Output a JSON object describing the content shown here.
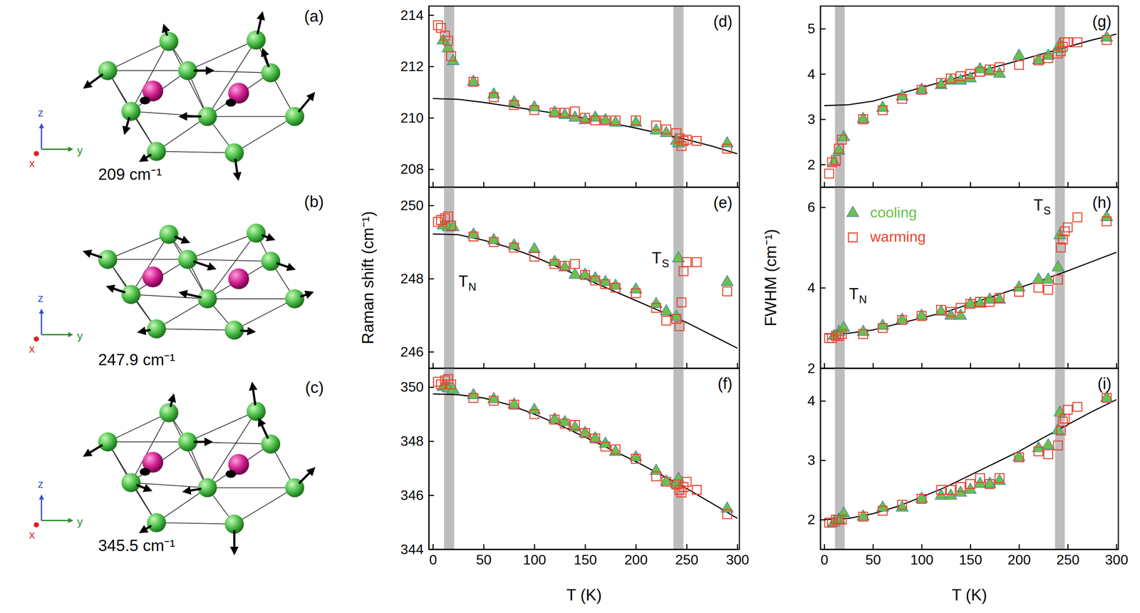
{
  "chart_data": [
    {
      "type": "scatter",
      "panel_label": "(d)",
      "xlim": [
        -4,
        302
      ],
      "xticks": [
        0,
        50,
        100,
        150,
        200,
        250,
        300
      ],
      "ylim": [
        207.3,
        214.35
      ],
      "yticks": [
        208,
        210,
        212,
        214
      ],
      "tick_labels": "y",
      "bands": [
        {
          "x0": 11,
          "x1": 21
        },
        {
          "x0": 237,
          "x1": 247
        }
      ],
      "series": [
        {
          "type": "line",
          "color": "#000000",
          "line_style": "solid",
          "x": [
            0,
            25,
            50,
            75,
            100,
            125,
            150,
            175,
            200,
            225,
            250,
            275,
            300
          ],
          "values": [
            210.75,
            210.72,
            210.6,
            210.45,
            210.3,
            210.15,
            209.98,
            209.8,
            209.6,
            209.38,
            209.15,
            208.9,
            208.6
          ]
        },
        {
          "type": "scatter",
          "color": "#6cc04a",
          "marker": "triangle",
          "x": [
            10,
            15,
            20,
            40,
            60,
            80,
            100,
            120,
            130,
            140,
            150,
            160,
            170,
            180,
            200,
            220,
            230,
            240,
            242,
            290
          ],
          "values": [
            213.0,
            212.7,
            212.2,
            211.4,
            210.9,
            210.6,
            210.4,
            210.2,
            210.1,
            210.0,
            209.9,
            210.0,
            209.9,
            209.8,
            209.8,
            209.5,
            209.4,
            209.1,
            209.0,
            209.0
          ]
        },
        {
          "type": "scatter",
          "color": "#e8452c",
          "marker": "square",
          "x": [
            5,
            8,
            12,
            15,
            18,
            40,
            60,
            80,
            100,
            120,
            130,
            140,
            150,
            160,
            170,
            180,
            200,
            220,
            230,
            240,
            243,
            245,
            247,
            250,
            260,
            290
          ],
          "values": [
            213.6,
            213.5,
            213.2,
            213.0,
            212.4,
            211.4,
            210.8,
            210.5,
            210.3,
            210.2,
            210.2,
            210.25,
            210.0,
            209.9,
            209.9,
            209.9,
            209.9,
            209.7,
            209.55,
            209.4,
            209.2,
            208.9,
            209.1,
            209.15,
            209.1,
            208.8
          ]
        }
      ]
    },
    {
      "type": "scatter",
      "panel_label": "(e)",
      "y_label": "Raman shift (cm⁻¹)",
      "xlim": [
        -4,
        302
      ],
      "xticks": [
        0,
        50,
        100,
        150,
        200,
        250,
        300
      ],
      "ylim": [
        245.55,
        250.5
      ],
      "yticks": [
        246,
        248,
        250
      ],
      "tick_labels": "y",
      "bands": [
        {
          "x0": 11,
          "x1": 21,
          "label": {
            "text": "T",
            "sub": "N"
          }
        },
        {
          "x0": 237,
          "x1": 247,
          "label": {
            "text": "T",
            "sub": "S"
          }
        }
      ],
      "series": [
        {
          "type": "line",
          "color": "#000000",
          "line_style": "solid",
          "x": [
            0,
            25,
            50,
            75,
            100,
            125,
            150,
            175,
            200,
            225,
            250,
            275,
            300
          ],
          "values": [
            249.22,
            249.2,
            249.05,
            248.85,
            248.6,
            248.3,
            248.0,
            247.7,
            247.4,
            247.1,
            246.8,
            246.45,
            246.1
          ]
        },
        {
          "type": "scatter",
          "color": "#6cc04a",
          "marker": "triangle",
          "x": [
            10,
            15,
            20,
            40,
            60,
            80,
            100,
            120,
            130,
            140,
            150,
            160,
            170,
            180,
            200,
            220,
            230,
            240,
            242,
            290
          ],
          "values": [
            249.45,
            249.4,
            249.4,
            249.2,
            249.05,
            248.9,
            248.8,
            248.45,
            248.3,
            248.1,
            248.1,
            248.0,
            247.9,
            247.8,
            247.7,
            247.3,
            247.1,
            246.95,
            248.55,
            247.9
          ]
        },
        {
          "type": "scatter",
          "color": "#e8452c",
          "marker": "square",
          "x": [
            5,
            8,
            12,
            15,
            18,
            40,
            60,
            80,
            100,
            120,
            130,
            140,
            150,
            160,
            170,
            180,
            200,
            220,
            230,
            240,
            243,
            245,
            247,
            250,
            260,
            290
          ],
          "values": [
            249.55,
            249.6,
            249.65,
            249.7,
            249.45,
            249.15,
            249.0,
            248.85,
            248.6,
            248.4,
            248.35,
            248.4,
            248.1,
            247.95,
            247.85,
            247.75,
            247.6,
            247.2,
            246.85,
            246.9,
            246.7,
            247.35,
            248.2,
            248.45,
            248.45,
            247.65
          ]
        }
      ]
    },
    {
      "type": "scatter",
      "panel_label": "(f)",
      "x_label": "T (K)",
      "xlim": [
        -4,
        302
      ],
      "xticks": [
        0,
        50,
        100,
        150,
        200,
        250,
        300
      ],
      "ylim": [
        344,
        350.7
      ],
      "yticks": [
        344,
        346,
        348,
        350
      ],
      "bands": [
        {
          "x0": 11,
          "x1": 21
        },
        {
          "x0": 237,
          "x1": 247
        }
      ],
      "series": [
        {
          "type": "line",
          "color": "#000000",
          "line_style": "solid",
          "x": [
            0,
            25,
            50,
            75,
            100,
            125,
            150,
            175,
            200,
            225,
            250,
            275,
            300
          ],
          "values": [
            349.75,
            349.72,
            349.6,
            349.35,
            349.0,
            348.6,
            348.15,
            347.7,
            347.25,
            346.75,
            346.25,
            345.7,
            345.15
          ]
        },
        {
          "type": "scatter",
          "color": "#6cc04a",
          "marker": "triangle",
          "x": [
            10,
            15,
            20,
            40,
            60,
            80,
            100,
            120,
            130,
            140,
            150,
            160,
            170,
            180,
            200,
            220,
            230,
            240,
            242,
            290
          ],
          "values": [
            350.0,
            349.95,
            349.9,
            349.7,
            349.55,
            349.35,
            349.15,
            348.8,
            348.7,
            348.5,
            348.3,
            348.1,
            347.9,
            347.6,
            347.4,
            346.9,
            346.5,
            346.4,
            346.6,
            345.5
          ]
        },
        {
          "type": "scatter",
          "color": "#e8452c",
          "marker": "square",
          "x": [
            5,
            8,
            12,
            15,
            18,
            40,
            60,
            80,
            100,
            120,
            130,
            140,
            150,
            160,
            170,
            180,
            200,
            220,
            230,
            240,
            243,
            245,
            247,
            250,
            260,
            290
          ],
          "values": [
            350.2,
            350.1,
            350.25,
            350.3,
            350.1,
            349.6,
            349.5,
            349.35,
            349.0,
            348.8,
            348.65,
            348.6,
            348.3,
            348.1,
            347.8,
            347.7,
            347.35,
            346.7,
            346.5,
            346.4,
            346.2,
            346.1,
            346.3,
            346.5,
            346.2,
            345.3
          ]
        }
      ]
    },
    {
      "type": "scatter",
      "panel_label": "(g)",
      "xlim": [
        -4,
        302
      ],
      "xticks": [
        0,
        50,
        100,
        150,
        200,
        250,
        300
      ],
      "ylim": [
        1.5,
        5.5
      ],
      "yticks": [
        2,
        3,
        4,
        5
      ],
      "tick_labels": "y",
      "bands": [
        {
          "x0": 11,
          "x1": 21
        },
        {
          "x0": 237,
          "x1": 247
        }
      ],
      "series": [
        {
          "type": "line",
          "color": "#000000",
          "line_style": "solid",
          "x": [
            0,
            25,
            50,
            75,
            100,
            125,
            150,
            175,
            200,
            225,
            250,
            275,
            300
          ],
          "values": [
            3.3,
            3.32,
            3.4,
            3.55,
            3.7,
            3.85,
            4.0,
            4.15,
            4.3,
            4.45,
            4.6,
            4.75,
            4.88
          ]
        },
        {
          "type": "scatter",
          "color": "#6cc04a",
          "marker": "triangle",
          "x": [
            10,
            15,
            20,
            40,
            60,
            80,
            100,
            120,
            130,
            140,
            150,
            160,
            170,
            180,
            200,
            220,
            230,
            240,
            242,
            290
          ],
          "values": [
            2.05,
            2.3,
            2.6,
            3.0,
            3.25,
            3.5,
            3.65,
            3.75,
            3.85,
            3.85,
            3.9,
            4.1,
            4.05,
            4.0,
            4.4,
            4.3,
            4.4,
            4.55,
            4.65,
            4.8
          ]
        },
        {
          "type": "scatter",
          "color": "#e8452c",
          "marker": "square",
          "x": [
            5,
            8,
            12,
            15,
            18,
            40,
            60,
            80,
            100,
            120,
            130,
            140,
            150,
            160,
            170,
            180,
            200,
            220,
            230,
            240,
            243,
            245,
            247,
            250,
            260,
            290
          ],
          "values": [
            1.8,
            2.05,
            2.1,
            2.35,
            2.55,
            3.0,
            3.2,
            3.45,
            3.65,
            3.8,
            3.9,
            3.95,
            4.0,
            4.05,
            4.1,
            4.15,
            4.2,
            4.3,
            4.35,
            4.45,
            4.5,
            4.6,
            4.7,
            4.7,
            4.7,
            4.75
          ]
        }
      ]
    },
    {
      "type": "scatter",
      "panel_label": "(h)",
      "y_label": "FWHM (cm⁻¹)",
      "xlim": [
        -4,
        302
      ],
      "xticks": [
        0,
        50,
        100,
        150,
        200,
        250,
        300
      ],
      "ylim": [
        2,
        6.5
      ],
      "yticks": [
        2,
        4,
        6
      ],
      "tick_labels": "y",
      "legend": "top-left",
      "bands": [
        {
          "x0": 11,
          "x1": 21,
          "label": {
            "text": "T",
            "sub": "N"
          }
        },
        {
          "x0": 237,
          "x1": 247,
          "label": {
            "text": "T",
            "sub": "S"
          }
        }
      ],
      "series": [
        {
          "type": "line",
          "color": "#000000",
          "line_style": "solid",
          "x": [
            0,
            25,
            50,
            75,
            100,
            125,
            150,
            175,
            200,
            225,
            250,
            275,
            300
          ],
          "values": [
            2.85,
            2.87,
            2.95,
            3.1,
            3.25,
            3.4,
            3.6,
            3.8,
            4.0,
            4.2,
            4.42,
            4.65,
            4.88
          ]
        },
        {
          "type": "scatter",
          "name": "cooling",
          "color": "#6cc04a",
          "marker": "triangle",
          "x": [
            10,
            15,
            20,
            40,
            60,
            80,
            100,
            120,
            130,
            140,
            150,
            160,
            170,
            180,
            200,
            220,
            230,
            240,
            242,
            290
          ],
          "values": [
            2.8,
            2.9,
            3.0,
            2.9,
            3.05,
            3.2,
            3.3,
            3.4,
            3.3,
            3.3,
            3.6,
            3.6,
            3.7,
            3.7,
            4.0,
            4.2,
            4.2,
            4.5,
            5.3,
            5.75
          ]
        },
        {
          "type": "scatter",
          "name": "warming",
          "color": "#e8452c",
          "marker": "square",
          "x": [
            5,
            8,
            12,
            15,
            18,
            40,
            60,
            80,
            100,
            120,
            130,
            140,
            150,
            160,
            170,
            180,
            200,
            220,
            230,
            240,
            243,
            245,
            247,
            250,
            260,
            290
          ],
          "values": [
            2.75,
            2.75,
            2.8,
            2.8,
            2.85,
            2.85,
            3.0,
            3.2,
            3.3,
            3.45,
            3.4,
            3.5,
            3.6,
            3.65,
            3.65,
            3.75,
            3.9,
            4.0,
            3.95,
            4.2,
            5.0,
            5.2,
            5.4,
            5.5,
            5.75,
            5.65
          ]
        }
      ]
    },
    {
      "type": "scatter",
      "panel_label": "(i)",
      "x_label": "T (K)",
      "xlim": [
        -4,
        302
      ],
      "xticks": [
        0,
        50,
        100,
        150,
        200,
        250,
        300
      ],
      "ylim": [
        1.5,
        4.55
      ],
      "yticks": [
        2,
        3,
        4
      ],
      "bands": [
        {
          "x0": 11,
          "x1": 21
        },
        {
          "x0": 237,
          "x1": 247
        }
      ],
      "series": [
        {
          "type": "line",
          "color": "#000000",
          "line_style": "solid",
          "x": [
            0,
            25,
            50,
            75,
            100,
            125,
            150,
            175,
            200,
            225,
            250,
            275,
            300
          ],
          "values": [
            2.0,
            2.02,
            2.1,
            2.22,
            2.38,
            2.55,
            2.75,
            2.95,
            3.15,
            3.38,
            3.6,
            3.82,
            4.02
          ]
        },
        {
          "type": "scatter",
          "color": "#6cc04a",
          "marker": "triangle",
          "x": [
            10,
            15,
            20,
            40,
            60,
            80,
            100,
            120,
            130,
            140,
            150,
            160,
            170,
            180,
            200,
            220,
            230,
            240,
            242,
            290
          ],
          "values": [
            1.95,
            2.0,
            2.1,
            2.05,
            2.2,
            2.2,
            2.35,
            2.4,
            2.4,
            2.45,
            2.5,
            2.6,
            2.6,
            2.65,
            3.05,
            3.2,
            3.25,
            3.5,
            3.8,
            4.05
          ]
        },
        {
          "type": "scatter",
          "color": "#e8452c",
          "marker": "square",
          "x": [
            5,
            8,
            12,
            15,
            18,
            40,
            60,
            80,
            100,
            120,
            130,
            140,
            150,
            160,
            170,
            180,
            200,
            220,
            230,
            240,
            243,
            245,
            247,
            250,
            260,
            290
          ],
          "values": [
            1.95,
            1.95,
            2.0,
            2.0,
            2.0,
            2.05,
            2.15,
            2.25,
            2.35,
            2.5,
            2.5,
            2.55,
            2.6,
            2.7,
            2.6,
            2.7,
            3.05,
            3.15,
            3.1,
            3.25,
            3.5,
            3.65,
            3.7,
            3.85,
            3.9,
            4.05
          ]
        }
      ]
    }
  ],
  "diagrams": [
    {
      "label": "(a)",
      "caption": "209 cm⁻¹",
      "axis_labels": [
        "x",
        "y",
        "z"
      ]
    },
    {
      "label": "(b)",
      "caption": "247.9 cm⁻¹",
      "axis_labels": [
        "x",
        "y",
        "z"
      ]
    },
    {
      "label": "(c)",
      "caption": "345.5 cm⁻¹",
      "axis_labels": [
        "x",
        "y",
        "z"
      ]
    }
  ]
}
